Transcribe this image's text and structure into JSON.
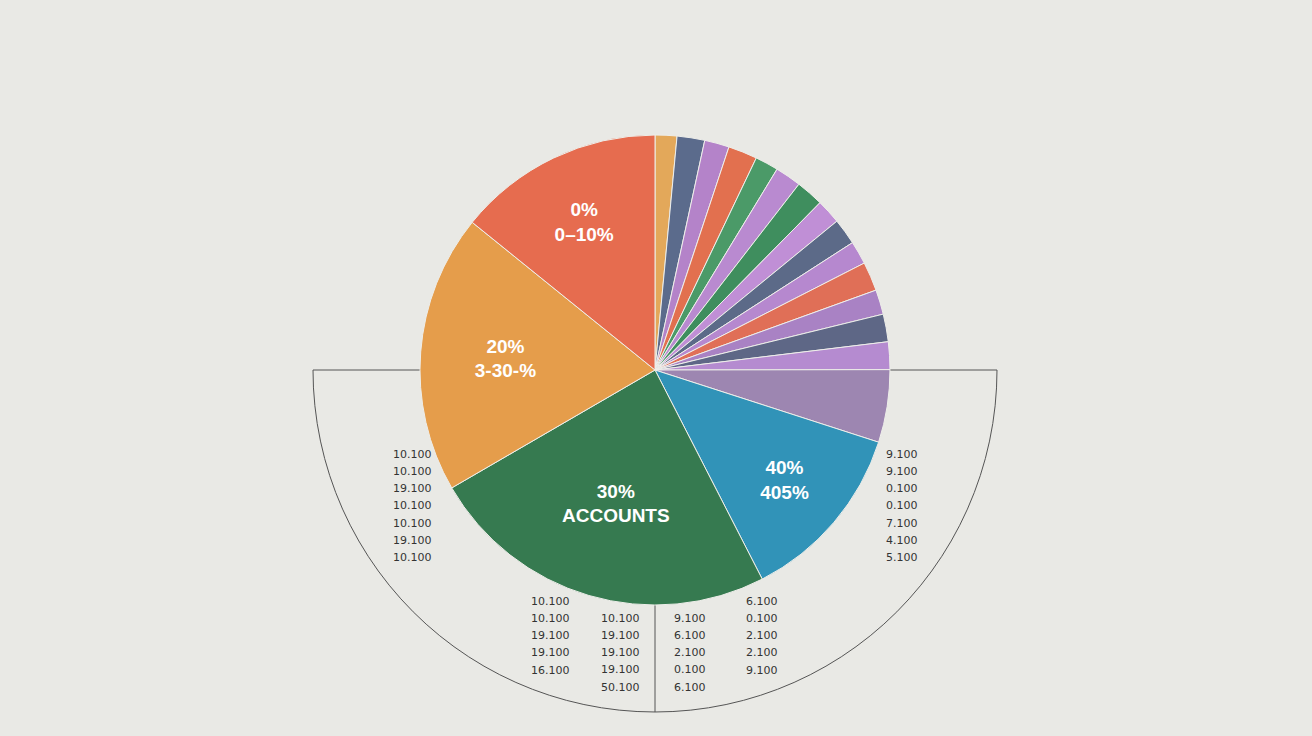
{
  "chart_data": {
    "type": "pie",
    "categories": [
      null,
      null,
      null,
      null,
      null,
      null,
      null,
      null,
      null,
      null,
      null,
      null,
      null,
      null,
      null,
      "40%\n405%",
      "30%\nACCOUNTS",
      "20%\n3-30-%",
      "0%\n0–10%"
    ],
    "values": [
      1.5,
      1.9,
      1.7,
      2.0,
      1.6,
      1.8,
      1.9,
      1.7,
      1.8,
      1.6,
      2.0,
      1.7,
      1.9,
      1.9,
      5.0,
      12.5,
      24.2,
      19.2,
      14.2
    ],
    "colors": [
      "#e3a85a",
      "#5b6b8c",
      "#b483c9",
      "#e2704f",
      "#4b9a68",
      "#b98ad0",
      "#3f8e5e",
      "#c08fd6",
      "#5c6a88",
      "#b688cf",
      "#e06f57",
      "#a982c4",
      "#5e6786",
      "#b58bd0",
      "#9d86b1",
      "#3193b8",
      "#367a50",
      "#e59d4b",
      "#e66c4f"
    ],
    "number_columns": [
      {
        "texts": [
          "10.100",
          "10.100",
          "19.100",
          "10.100",
          "10.100",
          "19.100",
          "10.100"
        ]
      },
      {
        "texts": [
          "10.100",
          "10.100",
          "19.100",
          "19.100",
          "16.100"
        ]
      },
      {
        "texts": [
          "10.100",
          "19.100",
          "19.100",
          "19.100",
          "50.100"
        ]
      },
      {
        "texts": [
          "9.100",
          "6.100",
          "2.100",
          "0.100",
          "6.100"
        ]
      },
      {
        "texts": [
          "6.100",
          "0.100",
          "2.100",
          "2.100",
          "9.100"
        ]
      },
      {
        "texts": [
          "9.100",
          "9.100",
          "0.100",
          "0.100",
          "7.100",
          "4.100",
          "5.100"
        ]
      }
    ]
  }
}
